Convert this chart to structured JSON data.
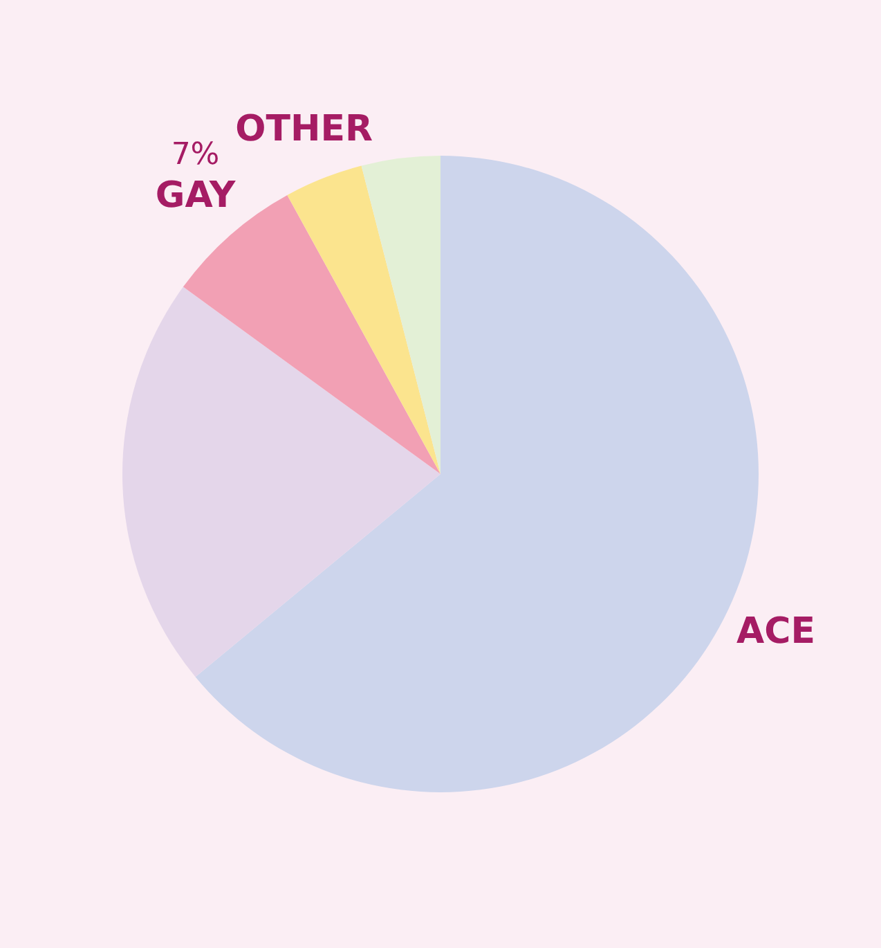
{
  "chart_data": {
    "type": "pie",
    "categories": [
      "ACE",
      null,
      "GAY",
      "OTHER",
      null
    ],
    "values": [
      64,
      21,
      7,
      4,
      4
    ],
    "value_labels": [
      null,
      null,
      "7%",
      null,
      null
    ],
    "colors": [
      "#cdd5ec",
      "#e4d6ea",
      "#f2a0b4",
      "#fbe48e",
      "#e3f0d6"
    ]
  }
}
